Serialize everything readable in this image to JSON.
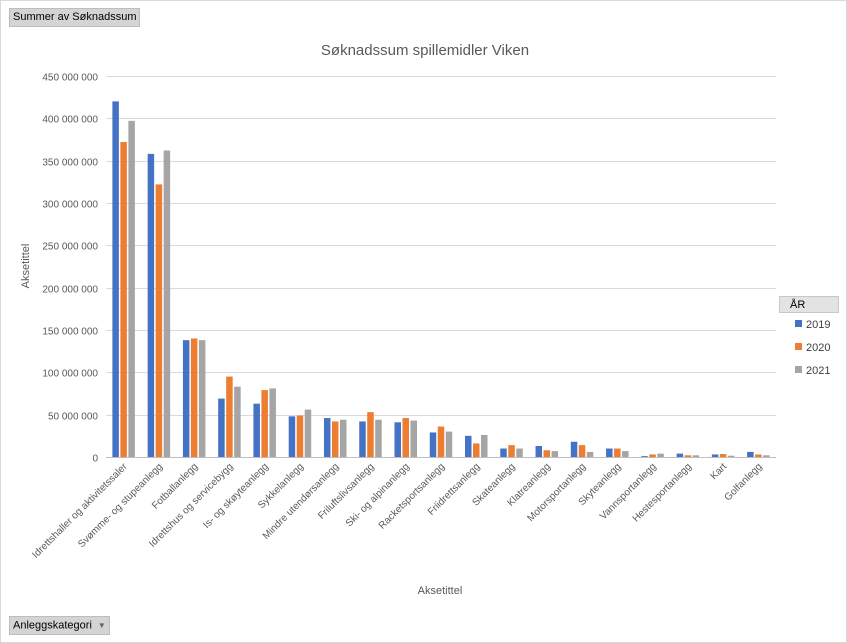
{
  "pivot": {
    "value_field": "Summer av Søknadssum",
    "axis_field": "Anleggskategori"
  },
  "chart_data": {
    "type": "bar",
    "title": "Søknadssum spillemidler Viken",
    "xlabel": "Aksetittel",
    "ylabel": "Aksetittel",
    "ylim": [
      0,
      450000000
    ],
    "ytick_values": [
      0,
      50000000,
      100000000,
      150000000,
      200000000,
      250000000,
      300000000,
      350000000,
      400000000,
      450000000
    ],
    "ytick_labels": [
      "0",
      "50 000 000",
      "100 000 000",
      "150 000 000",
      "200 000 000",
      "250 000 000",
      "300 000 000",
      "350 000 000",
      "400 000 000",
      "450 000 000"
    ],
    "grid": true,
    "legend_title": "ÅR",
    "legend_position": "right",
    "categories": [
      "Idrettshaller og aktivitetssaler",
      "Svømme- og stupeanlegg",
      "Fotballanlegg",
      "Idrettshus og servicebygg",
      "Is- og skøyteanlegg",
      "Sykkelanlegg",
      "Mindre utendørsanlegg",
      "Friluftslivsanlegg",
      "Ski- og alpinanlegg",
      "Racketsportsanlegg",
      "Friidrettsanlegg",
      "Skateanlegg",
      "Klatreanlegg",
      "Motorsportanlegg",
      "Skyteanlegg",
      "Vannsportanlegg",
      "Hestesportanlegg",
      "Kart",
      "Golfanlegg"
    ],
    "series": [
      {
        "name": "2019",
        "color": "#4472C4",
        "values": [
          420000000,
          358000000,
          138000000,
          69000000,
          63000000,
          48000000,
          46000000,
          42000000,
          41000000,
          29000000,
          25000000,
          10000000,
          13000000,
          18000000,
          10000000,
          1000000,
          4000000,
          3000000,
          6000000
        ]
      },
      {
        "name": "2020",
        "color": "#ED7D31",
        "values": [
          372000000,
          322000000,
          140000000,
          95000000,
          79000000,
          49000000,
          42000000,
          53000000,
          46000000,
          36000000,
          16000000,
          14000000,
          8000000,
          14000000,
          10000000,
          3000000,
          2000000,
          3500000,
          3000000
        ]
      },
      {
        "name": "2021",
        "color": "#A5A5A5",
        "values": [
          397000000,
          362000000,
          138000000,
          83000000,
          81000000,
          56000000,
          44000000,
          44000000,
          43000000,
          30000000,
          26000000,
          10000000,
          7000000,
          6000000,
          7000000,
          4000000,
          2000000,
          1500000,
          2000000
        ]
      }
    ]
  }
}
